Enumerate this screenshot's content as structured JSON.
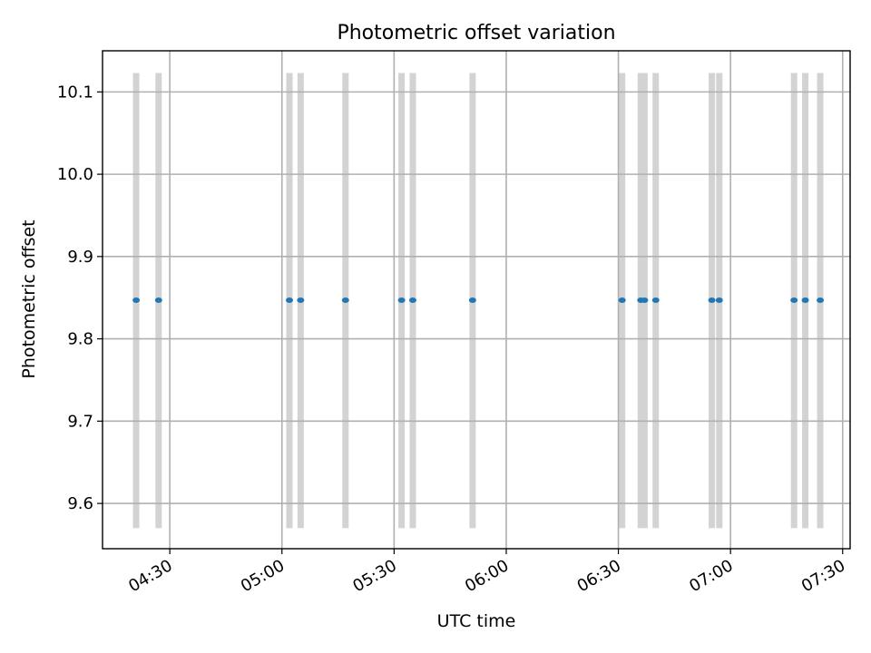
{
  "chart_data": {
    "type": "scatter",
    "title": "Photometric offset variation",
    "xlabel": "UTC time",
    "ylabel": "Photometric offset",
    "x_axis_type": "time",
    "xlim": [
      "04:12",
      "07:32"
    ],
    "ylim": [
      9.545,
      10.15
    ],
    "x_ticks": [
      "04:30",
      "05:00",
      "05:30",
      "06:00",
      "06:30",
      "07:00",
      "07:30"
    ],
    "y_ticks": [
      9.6,
      9.7,
      9.8,
      9.9,
      10.0,
      10.1
    ],
    "grid": true,
    "points": {
      "color": "#1f77b4",
      "x": [
        "04:21",
        "04:27",
        "05:02",
        "05:05",
        "05:17",
        "05:32",
        "05:35",
        "05:51",
        "06:31",
        "06:36",
        "06:37",
        "06:40",
        "06:55",
        "06:57",
        "07:17",
        "07:20",
        "07:24"
      ],
      "y": [
        9.847,
        9.847,
        9.847,
        9.847,
        9.847,
        9.847,
        9.847,
        9.847,
        9.847,
        9.847,
        9.847,
        9.847,
        9.847,
        9.847,
        9.847,
        9.847,
        9.847
      ]
    },
    "bands": {
      "color": "#d3d3d3",
      "y_range": [
        9.57,
        10.123
      ],
      "x": [
        "04:21",
        "04:27",
        "05:02",
        "05:05",
        "05:17",
        "05:32",
        "05:35",
        "05:51",
        "06:31",
        "06:36",
        "06:37",
        "06:40",
        "06:55",
        "06:57",
        "07:17",
        "07:20",
        "07:24"
      ]
    }
  }
}
